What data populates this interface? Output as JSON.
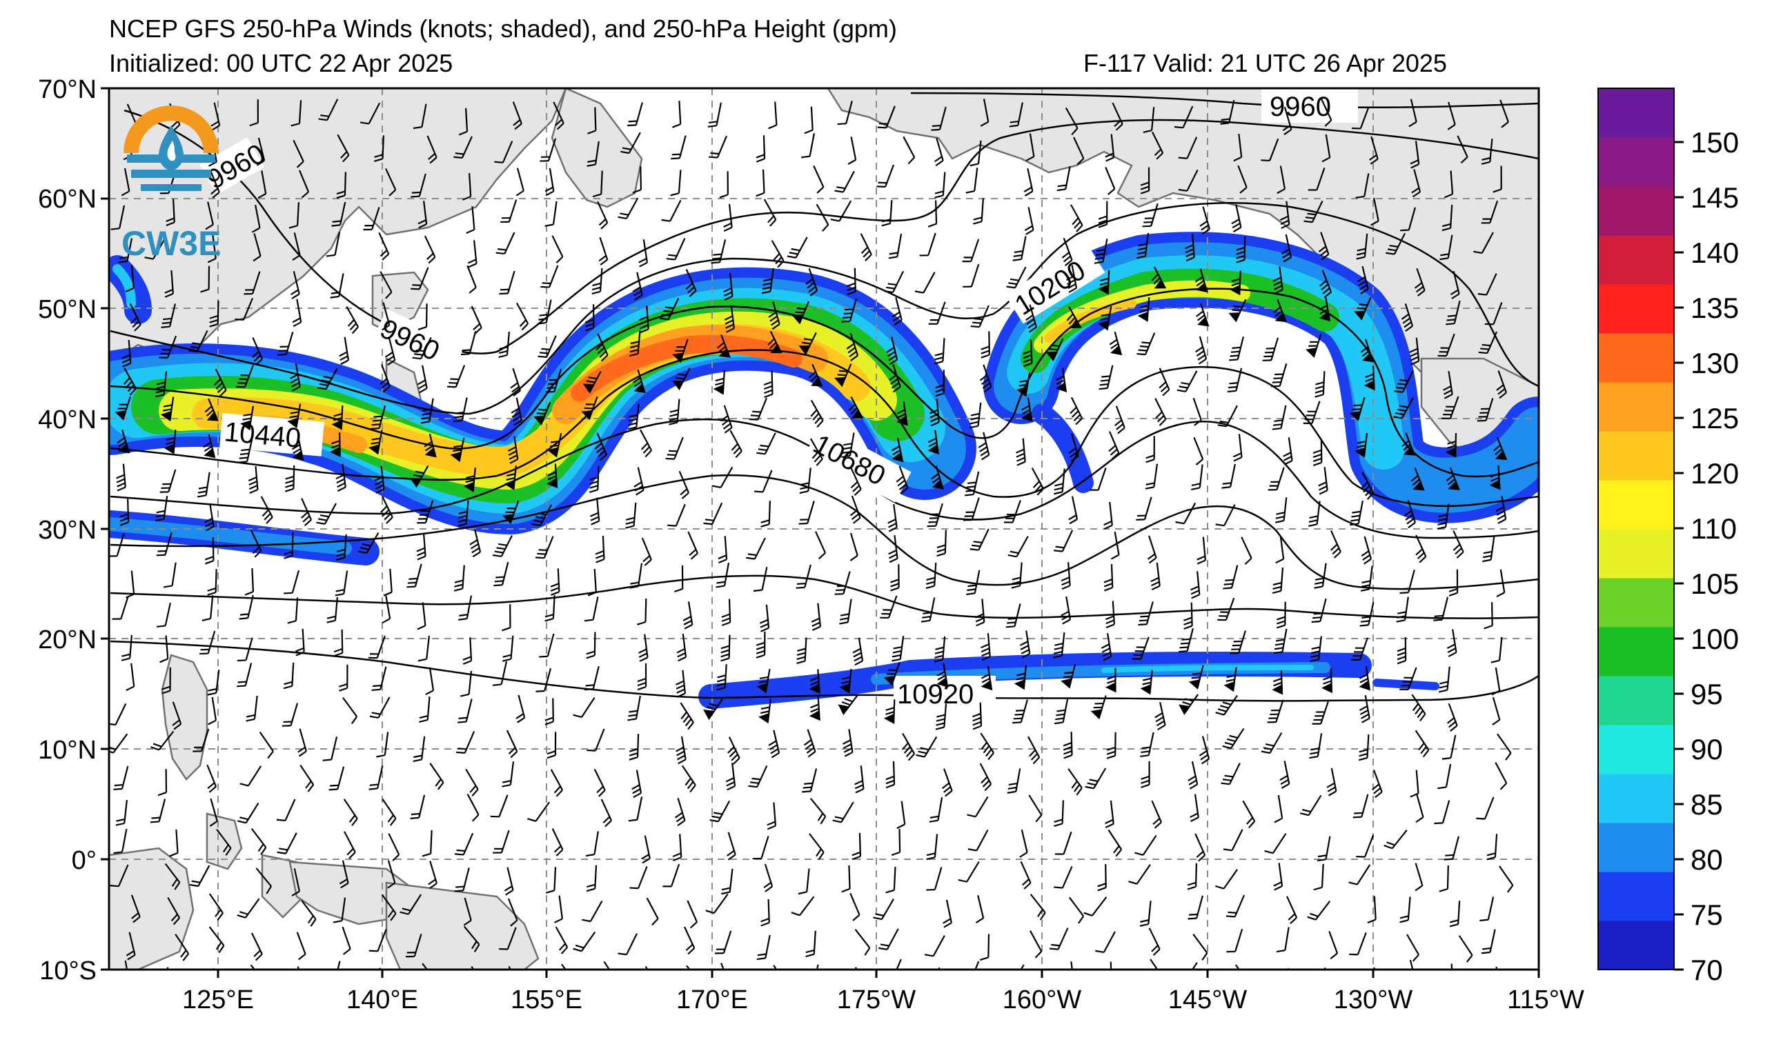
{
  "header": {
    "title": "NCEP GFS 250-hPa Winds (knots; shaded), and 250-hPa Height (gpm)",
    "initialized": "Initialized: 00 UTC 22 Apr 2025",
    "valid": "F-117  Valid: 21 UTC 26 Apr 2025"
  },
  "logo": {
    "text": "CW3E",
    "ring_colors": [
      "#f39a1e",
      "#2f8fbf"
    ],
    "icon": "water-drop-logo-icon"
  },
  "axes": {
    "lat_labels": [
      "70°N",
      "60°N",
      "50°N",
      "40°N",
      "30°N",
      "20°N",
      "10°N",
      "0°",
      "10°S"
    ],
    "lon_labels": [
      "125°E",
      "140°E",
      "155°E",
      "170°E",
      "175°W",
      "160°W",
      "145°W",
      "130°W",
      "115°W"
    ]
  },
  "contour_labels": {
    "c9960_top": "9960",
    "c9960_left": "9960",
    "c9960_partial": "9960",
    "c10200": "10200",
    "c10440": "10440",
    "c10680": "10680",
    "c10920": "10920"
  },
  "colorbar": {
    "labels": [
      "70",
      "75",
      "80",
      "85",
      "90",
      "95",
      "100",
      "105",
      "110",
      "120",
      "125",
      "130",
      "135",
      "140",
      "145",
      "150"
    ],
    "colors": [
      "#1b1fc4",
      "#1b3ff0",
      "#1f8cf0",
      "#22c8f5",
      "#1ee8e0",
      "#20d690",
      "#1cbf26",
      "#6cd22a",
      "#e8f028",
      "#fff21a",
      "#ffc81e",
      "#ffa020",
      "#ff6a1c",
      "#ff221c",
      "#d01e3c",
      "#a0186a",
      "#8a1a86",
      "#6a1a9a"
    ]
  }
}
